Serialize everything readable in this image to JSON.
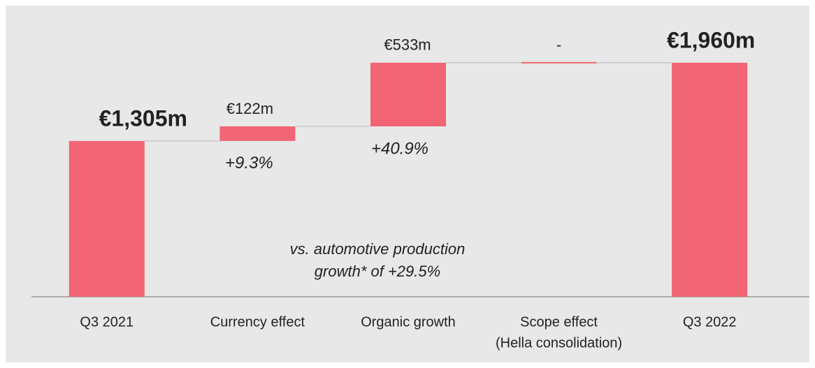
{
  "chart_data": {
    "type": "waterfall",
    "categories": [
      [
        "Q3 2021"
      ],
      [
        "Currency effect"
      ],
      [
        "Organic growth"
      ],
      [
        "Scope effect",
        "(Hella consolidation)"
      ],
      [
        "Q3 2022"
      ]
    ],
    "measures": [
      "total",
      "relative",
      "relative",
      "relative",
      "total"
    ],
    "values": [
      1305,
      122,
      533,
      0,
      1960
    ],
    "value_labels": [
      "€1,305m",
      "€122m",
      "€533m",
      "-",
      "€1,960m"
    ],
    "growth_labels": [
      null,
      "+9.3%",
      "+40.9%",
      null,
      null
    ],
    "annotation": [
      "vs. automotive production",
      "growth* of +29.5%"
    ],
    "color": "#f26574",
    "ylim": [
      0,
      2000
    ]
  }
}
